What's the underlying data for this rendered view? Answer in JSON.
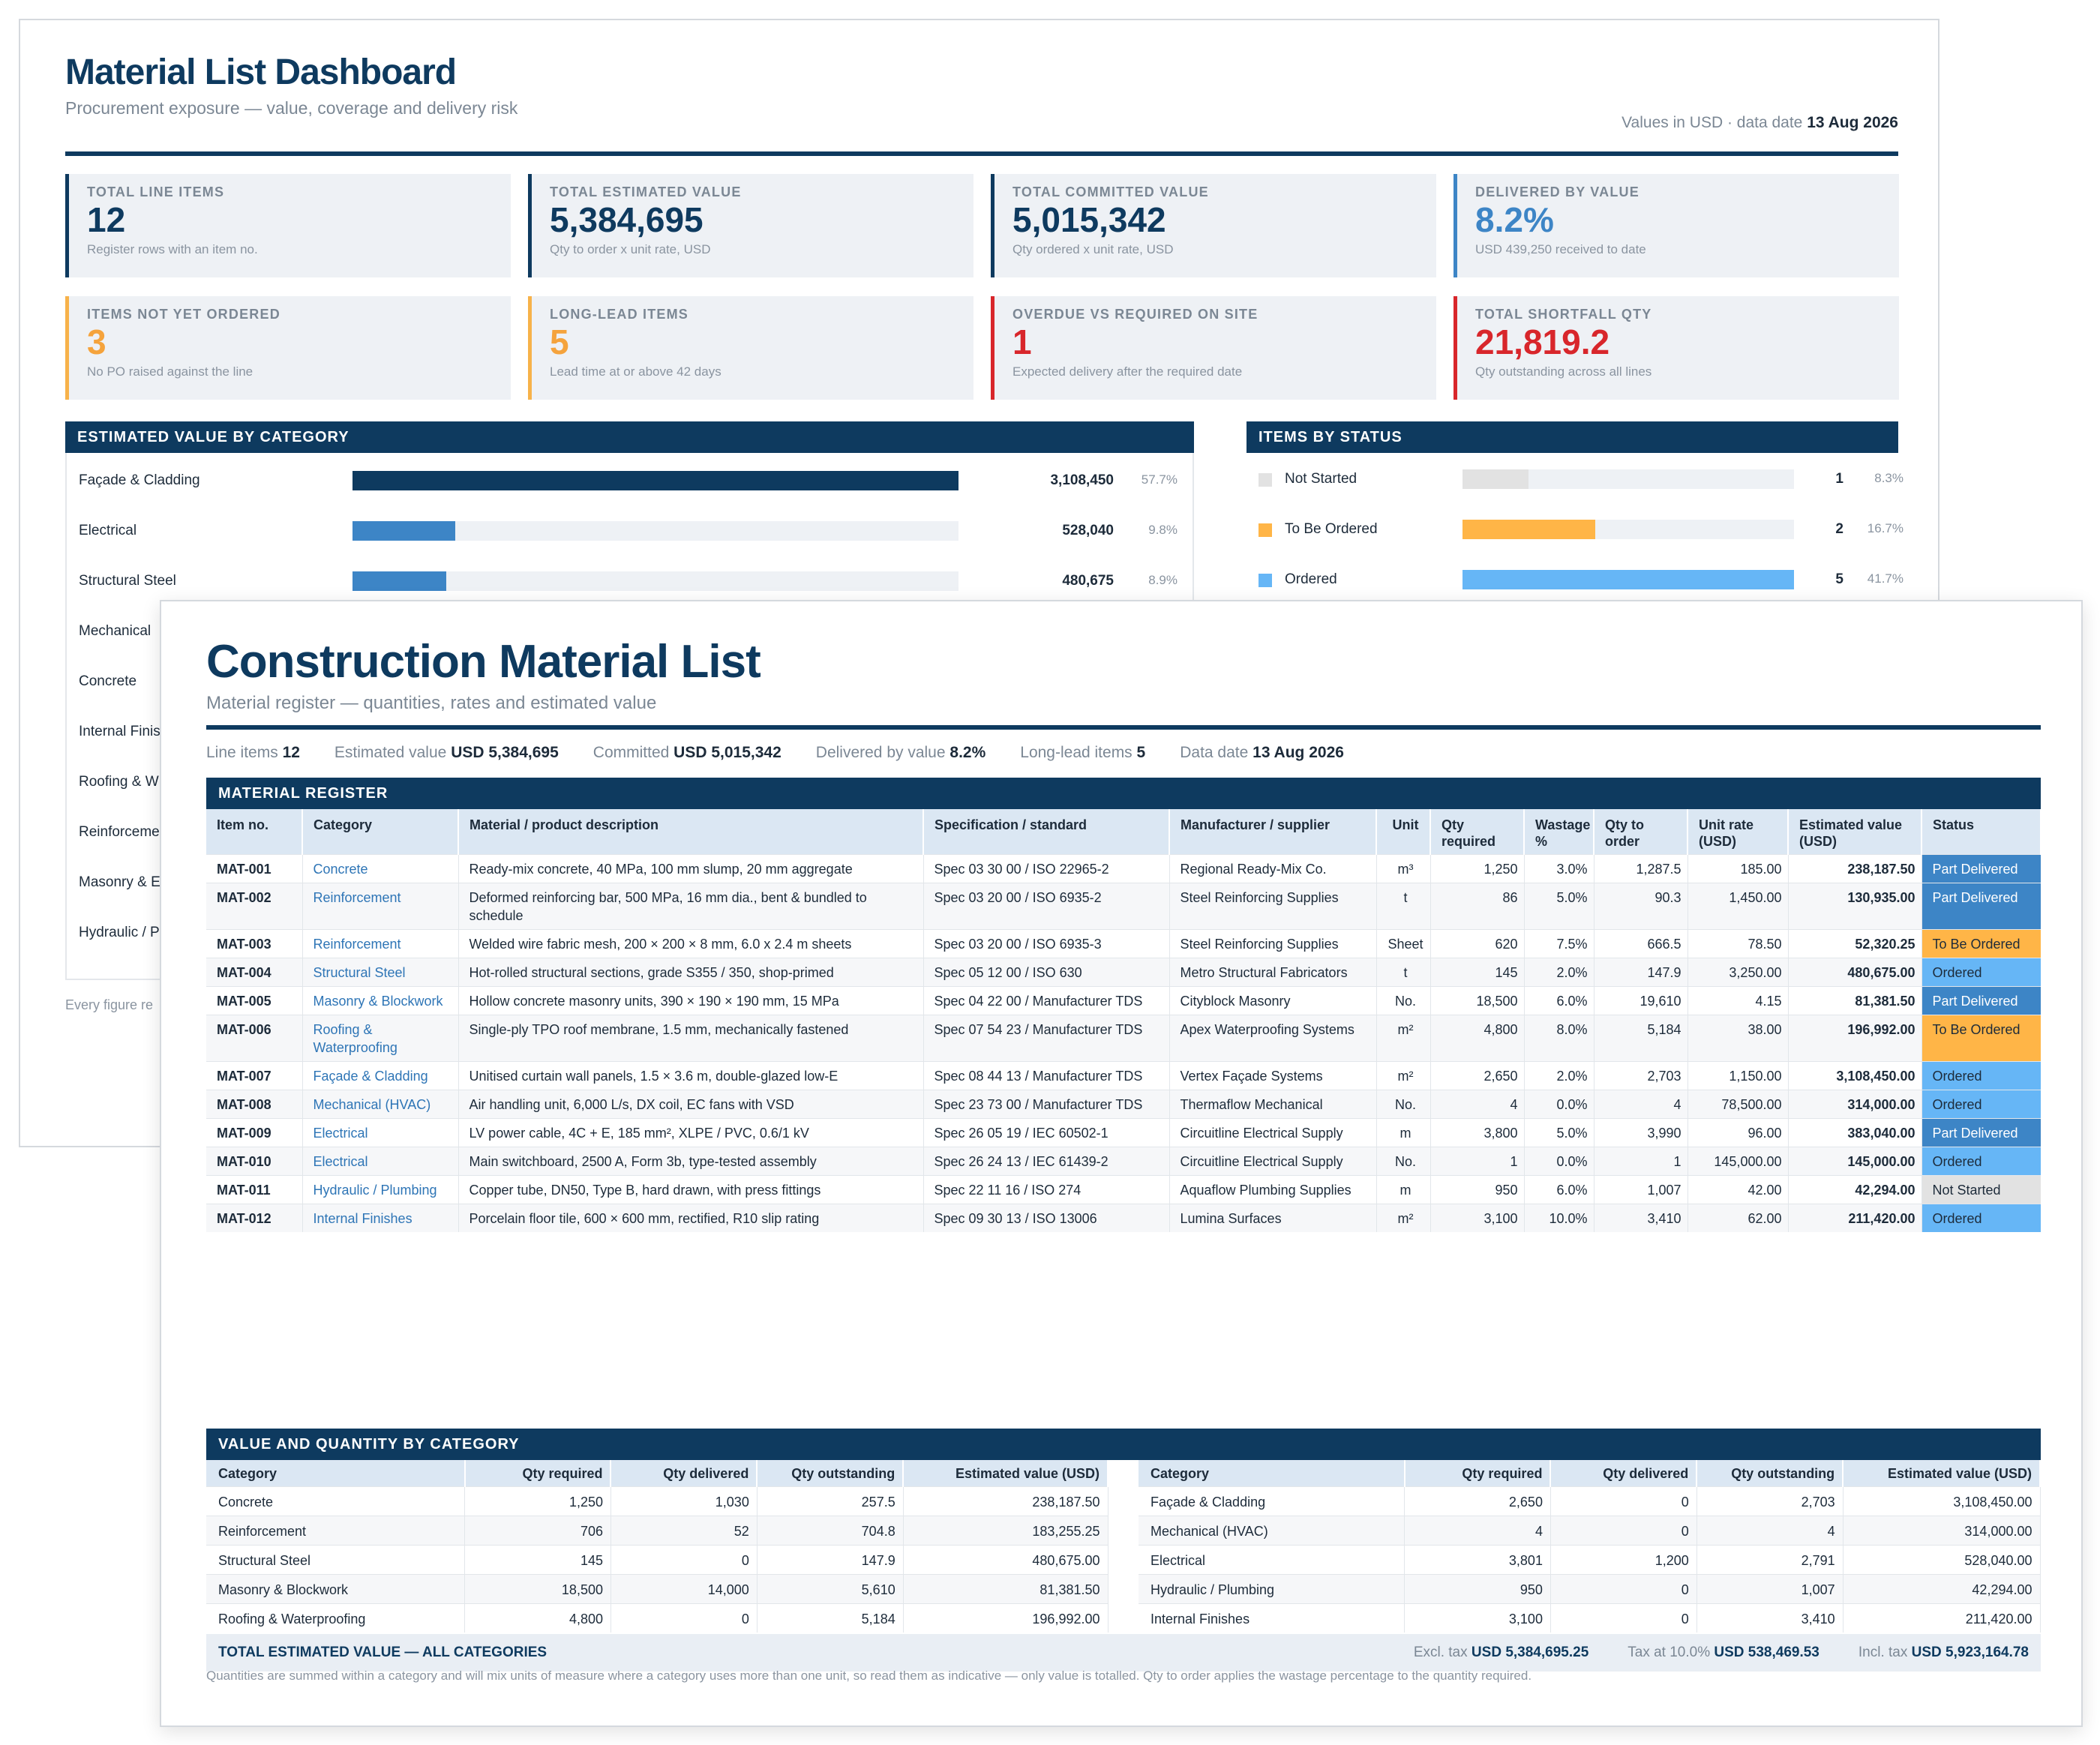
{
  "dashboard": {
    "title": "Material List Dashboard",
    "subtitle": "Procurement exposure — value, coverage and delivery risk",
    "meta_prefix": "Values in USD · data date",
    "meta_date": "13 Aug 2026",
    "kpis": [
      {
        "label": "TOTAL LINE ITEMS",
        "value": "12",
        "note": "Register rows with an item no."
      },
      {
        "label": "TOTAL ESTIMATED VALUE",
        "value": "5,384,695",
        "note": "Qty to order x unit rate, USD"
      },
      {
        "label": "TOTAL COMMITTED VALUE",
        "value": "5,015,342",
        "note": "Qty ordered x unit rate, USD"
      },
      {
        "label": "DELIVERED BY VALUE",
        "value": "8.2%",
        "note": "USD 439,250 received to date"
      },
      {
        "label": "ITEMS NOT YET ORDERED",
        "value": "3",
        "note": "No PO raised against the line"
      },
      {
        "label": "LONG-LEAD ITEMS",
        "value": "5",
        "note": "Lead time at or above 42 days"
      },
      {
        "label": "OVERDUE VS REQUIRED ON SITE",
        "value": "1",
        "note": "Expected delivery after the required date"
      },
      {
        "label": "TOTAL SHORTFALL QTY",
        "value": "21,819.2",
        "note": "Qty outstanding across all lines"
      }
    ],
    "category_panel_title": "ESTIMATED VALUE BY CATEGORY",
    "category_bars": [
      {
        "name": "Façade & Cladding",
        "amount": "3,108,450",
        "pct": "57.7%",
        "fraction": 1.0,
        "color": "#0e3a5f"
      },
      {
        "name": "Electrical",
        "amount": "528,040",
        "pct": "9.8%",
        "fraction": 0.17,
        "color": "#3d85c6"
      },
      {
        "name": "Structural Steel",
        "amount": "480,675",
        "pct": "8.9%",
        "fraction": 0.155,
        "color": "#3d85c6"
      },
      {
        "name": "Mechanical",
        "amount": "",
        "pct": "",
        "fraction": 0,
        "color": "#3d85c6"
      },
      {
        "name": "Concrete",
        "amount": "",
        "pct": "",
        "fraction": 0,
        "color": "#3d85c6"
      },
      {
        "name": "Internal Finis",
        "amount": "",
        "pct": "",
        "fraction": 0,
        "color": "#3d85c6"
      },
      {
        "name": "Roofing & W",
        "amount": "",
        "pct": "",
        "fraction": 0,
        "color": "#3d85c6"
      },
      {
        "name": "Reinforceme",
        "amount": "",
        "pct": "",
        "fraction": 0,
        "color": "#3d85c6"
      },
      {
        "name": "Masonry & E",
        "amount": "",
        "pct": "",
        "fraction": 0,
        "color": "#3d85c6"
      },
      {
        "name": "Hydraulic / P",
        "amount": "",
        "pct": "",
        "fraction": 0,
        "color": "#3d85c6"
      }
    ],
    "status_panel_title": "ITEMS BY STATUS",
    "status_bars": [
      {
        "name": "Not Started",
        "count": "1",
        "pct": "8.3%",
        "fraction": 0.2,
        "color": "#e2e2e2"
      },
      {
        "name": "To Be Ordered",
        "count": "2",
        "pct": "16.7%",
        "fraction": 0.4,
        "color": "#ffb547"
      },
      {
        "name": "Ordered",
        "count": "5",
        "pct": "41.7%",
        "fraction": 1.0,
        "color": "#66b6f6"
      }
    ],
    "footnote": "Every figure re"
  },
  "register": {
    "title": "Construction Material List",
    "subtitle": "Material register — quantities, rates and estimated value",
    "summary": [
      {
        "label": "Line items",
        "value": "12"
      },
      {
        "label": "Estimated value",
        "value": "USD 5,384,695"
      },
      {
        "label": "Committed",
        "value": "USD 5,015,342"
      },
      {
        "label": "Delivered by value",
        "value": "8.2%"
      },
      {
        "label": "Long-lead items",
        "value": "5"
      },
      {
        "label": "Data date",
        "value": "13 Aug 2026"
      }
    ],
    "table_title": "MATERIAL REGISTER",
    "columns": [
      "Item no.",
      "Category",
      "Material / product description",
      "Specification / standard",
      "Manufacturer / supplier",
      "Unit",
      "Qty required",
      "Wastage %",
      "Qty to order",
      "Unit rate (USD)",
      "Estimated value (USD)",
      "Status"
    ],
    "rows": [
      {
        "item": "MAT-001",
        "category": "Concrete",
        "description": "Ready-mix concrete, 40 MPa, 100 mm slump, 20 mm aggregate",
        "spec": "Spec 03 30 00 / ISO 22965-2",
        "supplier": "Regional Ready-Mix Co.",
        "unit": "m³",
        "qty": "1,250",
        "wastage": "3.0%",
        "order": "1,287.5",
        "rate": "185.00",
        "value": "238,187.50",
        "status": "Part Delivered",
        "status_class": "st-pd"
      },
      {
        "item": "MAT-002",
        "category": "Reinforcement",
        "description": "Deformed reinforcing bar, 500 MPa, 16 mm dia., bent & bundled to schedule",
        "spec": "Spec 03 20 00 / ISO 6935-2",
        "supplier": "Steel Reinforcing Supplies",
        "unit": "t",
        "qty": "86",
        "wastage": "5.0%",
        "order": "90.3",
        "rate": "1,450.00",
        "value": "130,935.00",
        "status": "Part Delivered",
        "status_class": "st-pd"
      },
      {
        "item": "MAT-003",
        "category": "Reinforcement",
        "description": "Welded wire fabric mesh, 200 × 200 × 8 mm, 6.0 x 2.4 m sheets",
        "spec": "Spec 03 20 00 / ISO 6935-3",
        "supplier": "Steel Reinforcing Supplies",
        "unit": "Sheet",
        "qty": "620",
        "wastage": "7.5%",
        "order": "666.5",
        "rate": "78.50",
        "value": "52,320.25",
        "status": "To Be Ordered",
        "status_class": "st-tbo"
      },
      {
        "item": "MAT-004",
        "category": "Structural Steel",
        "description": "Hot-rolled structural sections, grade S355 / 350, shop-primed",
        "spec": "Spec 05 12 00 / ISO 630",
        "supplier": "Metro Structural Fabricators",
        "unit": "t",
        "qty": "145",
        "wastage": "2.0%",
        "order": "147.9",
        "rate": "3,250.00",
        "value": "480,675.00",
        "status": "Ordered",
        "status_class": "st-ord"
      },
      {
        "item": "MAT-005",
        "category": "Masonry & Blockwork",
        "description": "Hollow concrete masonry units, 390 × 190 × 190 mm, 15 MPa",
        "spec": "Spec 04 22 00 / Manufacturer TDS",
        "supplier": "Cityblock Masonry",
        "unit": "No.",
        "qty": "18,500",
        "wastage": "6.0%",
        "order": "19,610",
        "rate": "4.15",
        "value": "81,381.50",
        "status": "Part Delivered",
        "status_class": "st-pd"
      },
      {
        "item": "MAT-006",
        "category": "Roofing & Waterproofing",
        "description": "Single-ply TPO roof membrane, 1.5 mm, mechanically fastened",
        "spec": "Spec 07 54 23 / Manufacturer TDS",
        "supplier": "Apex Waterproofing Systems",
        "unit": "m²",
        "qty": "4,800",
        "wastage": "8.0%",
        "order": "5,184",
        "rate": "38.00",
        "value": "196,992.00",
        "status": "To Be Ordered",
        "status_class": "st-tbo"
      },
      {
        "item": "MAT-007",
        "category": "Façade & Cladding",
        "description": "Unitised curtain wall panels, 1.5 × 3.6 m, double-glazed low-E",
        "spec": "Spec 08 44 13 / Manufacturer TDS",
        "supplier": "Vertex Façade Systems",
        "unit": "m²",
        "qty": "2,650",
        "wastage": "2.0%",
        "order": "2,703",
        "rate": "1,150.00",
        "value": "3,108,450.00",
        "status": "Ordered",
        "status_class": "st-ord"
      },
      {
        "item": "MAT-008",
        "category": "Mechanical (HVAC)",
        "description": "Air handling unit, 6,000 L/s, DX coil, EC fans with VSD",
        "spec": "Spec 23 73 00 / Manufacturer TDS",
        "supplier": "Thermaflow Mechanical",
        "unit": "No.",
        "qty": "4",
        "wastage": "0.0%",
        "order": "4",
        "rate": "78,500.00",
        "value": "314,000.00",
        "status": "Ordered",
        "status_class": "st-ord"
      },
      {
        "item": "MAT-009",
        "category": "Electrical",
        "description": "LV power cable, 4C + E, 185 mm², XLPE / PVC, 0.6/1 kV",
        "spec": "Spec 26 05 19 / IEC 60502-1",
        "supplier": "Circuitline Electrical Supply",
        "unit": "m",
        "qty": "3,800",
        "wastage": "5.0%",
        "order": "3,990",
        "rate": "96.00",
        "value": "383,040.00",
        "status": "Part Delivered",
        "status_class": "st-pd"
      },
      {
        "item": "MAT-010",
        "category": "Electrical",
        "description": "Main switchboard, 2500 A, Form 3b, type-tested assembly",
        "spec": "Spec 26 24 13 / IEC 61439-2",
        "supplier": "Circuitline Electrical Supply",
        "unit": "No.",
        "qty": "1",
        "wastage": "0.0%",
        "order": "1",
        "rate": "145,000.00",
        "value": "145,000.00",
        "status": "Ordered",
        "status_class": "st-ord"
      },
      {
        "item": "MAT-011",
        "category": "Hydraulic / Plumbing",
        "description": "Copper tube, DN50, Type B, hard drawn, with press fittings",
        "spec": "Spec 22 11 16 / ISO 274",
        "supplier": "Aquaflow Plumbing Supplies",
        "unit": "m",
        "qty": "950",
        "wastage": "6.0%",
        "order": "1,007",
        "rate": "42.00",
        "value": "42,294.00",
        "status": "Not Started",
        "status_class": "st-ns"
      },
      {
        "item": "MAT-012",
        "category": "Internal Finishes",
        "description": "Porcelain floor tile, 600 × 600 mm, rectified, R10 slip rating",
        "spec": "Spec 09 30 13 / ISO 13006",
        "supplier": "Lumina Surfaces",
        "unit": "m²",
        "qty": "3,100",
        "wastage": "10.0%",
        "order": "3,410",
        "rate": "62.00",
        "value": "211,420.00",
        "status": "Ordered",
        "status_class": "st-ord"
      }
    ],
    "vq_title": "VALUE AND QUANTITY BY CATEGORY",
    "vq_columns": [
      "Category",
      "Qty required",
      "Qty delivered",
      "Qty outstanding",
      "Estimated value (USD)"
    ],
    "vq_left": [
      [
        "Concrete",
        "1,250",
        "1,030",
        "257.5",
        "238,187.50"
      ],
      [
        "Reinforcement",
        "706",
        "52",
        "704.8",
        "183,255.25"
      ],
      [
        "Structural Steel",
        "145",
        "0",
        "147.9",
        "480,675.00"
      ],
      [
        "Masonry & Blockwork",
        "18,500",
        "14,000",
        "5,610",
        "81,381.50"
      ],
      [
        "Roofing & Waterproofing",
        "4,800",
        "0",
        "5,184",
        "196,992.00"
      ]
    ],
    "vq_right": [
      [
        "Façade & Cladding",
        "2,650",
        "0",
        "2,703",
        "3,108,450.00"
      ],
      [
        "Mechanical (HVAC)",
        "4",
        "0",
        "4",
        "314,000.00"
      ],
      [
        "Electrical",
        "3,801",
        "1,200",
        "2,791",
        "528,040.00"
      ],
      [
        "Hydraulic / Plumbing",
        "950",
        "0",
        "1,007",
        "42,294.00"
      ],
      [
        "Internal Finishes",
        "3,100",
        "0",
        "3,410",
        "211,420.00"
      ]
    ],
    "totals": {
      "label": "TOTAL ESTIMATED VALUE — ALL CATEGORIES",
      "excl_label": "Excl. tax",
      "excl_value": "USD 5,384,695.25",
      "tax_label": "Tax at 10.0%",
      "tax_value": "USD 538,469.53",
      "incl_label": "Incl. tax",
      "incl_value": "USD 5,923,164.78"
    },
    "footnote": "Quantities are summed within a category and will mix units of measure where a category uses more than one unit, so read them as indicative — only value is totalled. Qty to order applies the wastage percentage to the quantity required."
  }
}
